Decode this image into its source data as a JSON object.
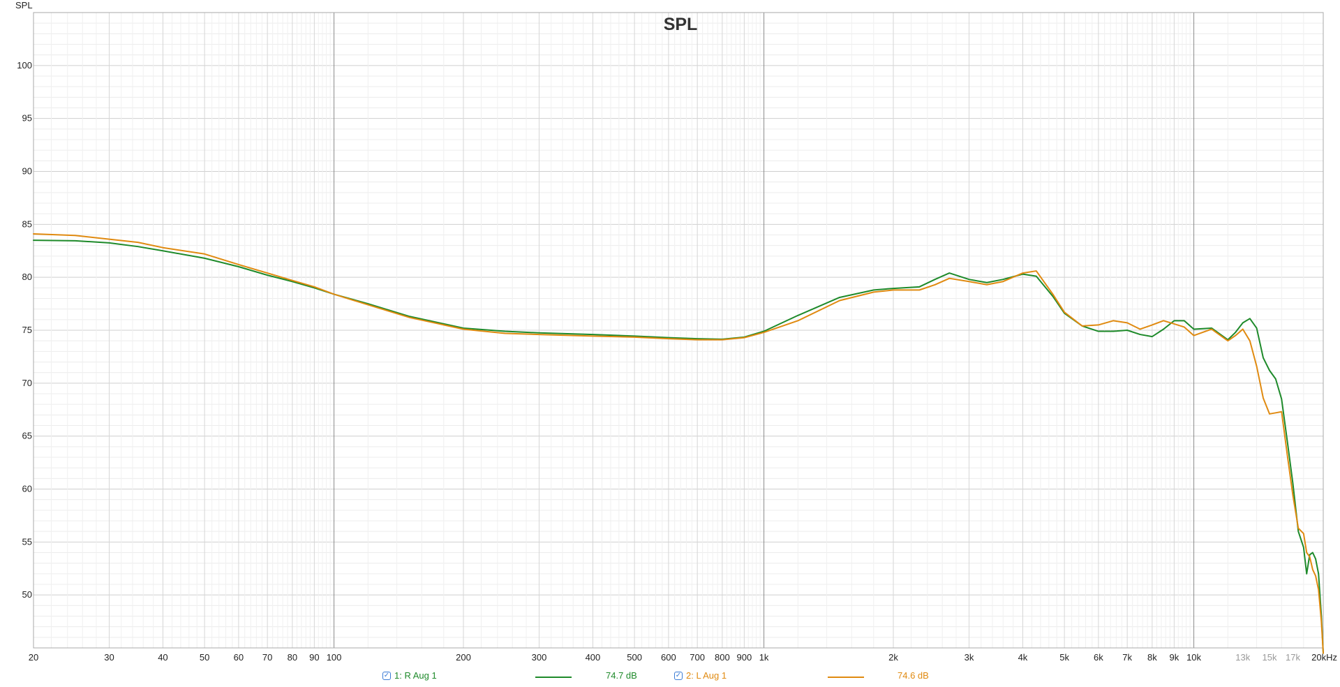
{
  "chart_data": {
    "type": "line",
    "title": "SPL",
    "ylabel": "SPL",
    "xlabel": "",
    "xscale": "log",
    "xlim": [
      20,
      20000
    ],
    "ylim": [
      45,
      105
    ],
    "grid": true,
    "y_ticks": [
      {
        "value": 100,
        "label": "100"
      },
      {
        "value": 95,
        "label": "95"
      },
      {
        "value": 90,
        "label": "90"
      },
      {
        "value": 85,
        "label": "85"
      },
      {
        "value": 80,
        "label": "80"
      },
      {
        "value": 75,
        "label": "75"
      },
      {
        "value": 70,
        "label": "70"
      },
      {
        "value": 65,
        "label": "65"
      },
      {
        "value": 60,
        "label": "60"
      },
      {
        "value": 55,
        "label": "55"
      },
      {
        "value": 50,
        "label": "50"
      }
    ],
    "x_ticks": [
      {
        "value": 20,
        "label": "20"
      },
      {
        "value": 30,
        "label": "30"
      },
      {
        "value": 40,
        "label": "40"
      },
      {
        "value": 50,
        "label": "50"
      },
      {
        "value": 60,
        "label": "60"
      },
      {
        "value": 70,
        "label": "70"
      },
      {
        "value": 80,
        "label": "80"
      },
      {
        "value": 90,
        "label": "90"
      },
      {
        "value": 100,
        "label": "100"
      },
      {
        "value": 200,
        "label": "200"
      },
      {
        "value": 300,
        "label": "300"
      },
      {
        "value": 400,
        "label": "400"
      },
      {
        "value": 500,
        "label": "500"
      },
      {
        "value": 600,
        "label": "600"
      },
      {
        "value": 700,
        "label": "700"
      },
      {
        "value": 800,
        "label": "800"
      },
      {
        "value": 900,
        "label": "900"
      },
      {
        "value": 1000,
        "label": "1k"
      },
      {
        "value": 2000,
        "label": "2k"
      },
      {
        "value": 3000,
        "label": "3k"
      },
      {
        "value": 4000,
        "label": "4k"
      },
      {
        "value": 5000,
        "label": "5k"
      },
      {
        "value": 6000,
        "label": "6k"
      },
      {
        "value": 7000,
        "label": "7k"
      },
      {
        "value": 8000,
        "label": "8k"
      },
      {
        "value": 9000,
        "label": "9k"
      },
      {
        "value": 10000,
        "label": "10k"
      },
      {
        "value": 13000,
        "label": "13k",
        "muted": true
      },
      {
        "value": 15000,
        "label": "15k",
        "muted": true
      },
      {
        "value": 17000,
        "label": "17k",
        "muted": true
      },
      {
        "value": 20000,
        "label": "20kHz"
      }
    ],
    "series": [
      {
        "name": "1: R Aug 1",
        "color": "#1e8a2a",
        "value_label": "74.7 dB",
        "points": [
          [
            20,
            83.5
          ],
          [
            25,
            83.45
          ],
          [
            30,
            83.25
          ],
          [
            35,
            82.9
          ],
          [
            40,
            82.5
          ],
          [
            50,
            81.8
          ],
          [
            60,
            81.0
          ],
          [
            70,
            80.2
          ],
          [
            80,
            79.6
          ],
          [
            90,
            79.0
          ],
          [
            100,
            78.4
          ],
          [
            120,
            77.5
          ],
          [
            150,
            76.3
          ],
          [
            200,
            75.2
          ],
          [
            250,
            74.9
          ],
          [
            300,
            74.75
          ],
          [
            400,
            74.6
          ],
          [
            500,
            74.45
          ],
          [
            600,
            74.3
          ],
          [
            700,
            74.2
          ],
          [
            800,
            74.15
          ],
          [
            900,
            74.35
          ],
          [
            1000,
            74.9
          ],
          [
            1200,
            76.4
          ],
          [
            1500,
            78.1
          ],
          [
            1800,
            78.8
          ],
          [
            2000,
            78.95
          ],
          [
            2300,
            79.1
          ],
          [
            2500,
            79.8
          ],
          [
            2700,
            80.4
          ],
          [
            3000,
            79.8
          ],
          [
            3300,
            79.5
          ],
          [
            3600,
            79.8
          ],
          [
            4000,
            80.3
          ],
          [
            4300,
            80.1
          ],
          [
            4700,
            78.2
          ],
          [
            5000,
            76.6
          ],
          [
            5500,
            75.4
          ],
          [
            6000,
            74.9
          ],
          [
            6500,
            74.9
          ],
          [
            7000,
            75.0
          ],
          [
            7500,
            74.6
          ],
          [
            8000,
            74.4
          ],
          [
            8500,
            75.1
          ],
          [
            9000,
            75.9
          ],
          [
            9500,
            75.9
          ],
          [
            10000,
            75.1
          ],
          [
            11000,
            75.2
          ],
          [
            12000,
            74.1
          ],
          [
            12500,
            74.8
          ],
          [
            13000,
            75.7
          ],
          [
            13500,
            76.1
          ],
          [
            14000,
            75.2
          ],
          [
            14500,
            72.4
          ],
          [
            15000,
            71.2
          ],
          [
            15500,
            70.4
          ],
          [
            16000,
            68.5
          ],
          [
            16500,
            64.5
          ],
          [
            17000,
            60.5
          ],
          [
            17500,
            56.0
          ],
          [
            18000,
            54.5
          ],
          [
            18300,
            52.0
          ],
          [
            18600,
            53.8
          ],
          [
            18900,
            54.0
          ],
          [
            19200,
            53.4
          ],
          [
            19500,
            52.0
          ],
          [
            19800,
            48.0
          ],
          [
            20000,
            44.5
          ]
        ]
      },
      {
        "name": "2: L Aug 1",
        "color": "#e08a10",
        "value_label": "74.6 dB",
        "points": [
          [
            20,
            84.1
          ],
          [
            25,
            83.95
          ],
          [
            30,
            83.6
          ],
          [
            35,
            83.3
          ],
          [
            40,
            82.8
          ],
          [
            50,
            82.2
          ],
          [
            60,
            81.2
          ],
          [
            70,
            80.4
          ],
          [
            80,
            79.7
          ],
          [
            90,
            79.1
          ],
          [
            100,
            78.4
          ],
          [
            120,
            77.4
          ],
          [
            150,
            76.2
          ],
          [
            200,
            75.1
          ],
          [
            250,
            74.7
          ],
          [
            300,
            74.6
          ],
          [
            400,
            74.45
          ],
          [
            500,
            74.35
          ],
          [
            600,
            74.2
          ],
          [
            700,
            74.1
          ],
          [
            800,
            74.1
          ],
          [
            900,
            74.3
          ],
          [
            1000,
            74.8
          ],
          [
            1200,
            75.9
          ],
          [
            1500,
            77.8
          ],
          [
            1800,
            78.6
          ],
          [
            2000,
            78.8
          ],
          [
            2300,
            78.8
          ],
          [
            2500,
            79.3
          ],
          [
            2700,
            79.9
          ],
          [
            3000,
            79.6
          ],
          [
            3300,
            79.3
          ],
          [
            3600,
            79.6
          ],
          [
            4000,
            80.4
          ],
          [
            4300,
            80.6
          ],
          [
            4700,
            78.4
          ],
          [
            5000,
            76.7
          ],
          [
            5500,
            75.4
          ],
          [
            6000,
            75.5
          ],
          [
            6500,
            75.9
          ],
          [
            7000,
            75.7
          ],
          [
            7500,
            75.1
          ],
          [
            8000,
            75.5
          ],
          [
            8500,
            75.9
          ],
          [
            9000,
            75.6
          ],
          [
            9500,
            75.3
          ],
          [
            10000,
            74.5
          ],
          [
            11000,
            75.1
          ],
          [
            12000,
            74.0
          ],
          [
            12500,
            74.5
          ],
          [
            13000,
            75.1
          ],
          [
            13500,
            74.0
          ],
          [
            14000,
            71.6
          ],
          [
            14500,
            68.6
          ],
          [
            15000,
            67.1
          ],
          [
            15500,
            67.2
          ],
          [
            16000,
            67.3
          ],
          [
            16500,
            63.2
          ],
          [
            17000,
            59.4
          ],
          [
            17500,
            56.3
          ],
          [
            18000,
            55.8
          ],
          [
            18300,
            54.0
          ],
          [
            18600,
            53.6
          ],
          [
            18900,
            52.4
          ],
          [
            19200,
            51.8
          ],
          [
            19500,
            50.5
          ],
          [
            19800,
            47.5
          ],
          [
            20000,
            44.5
          ]
        ]
      }
    ]
  }
}
